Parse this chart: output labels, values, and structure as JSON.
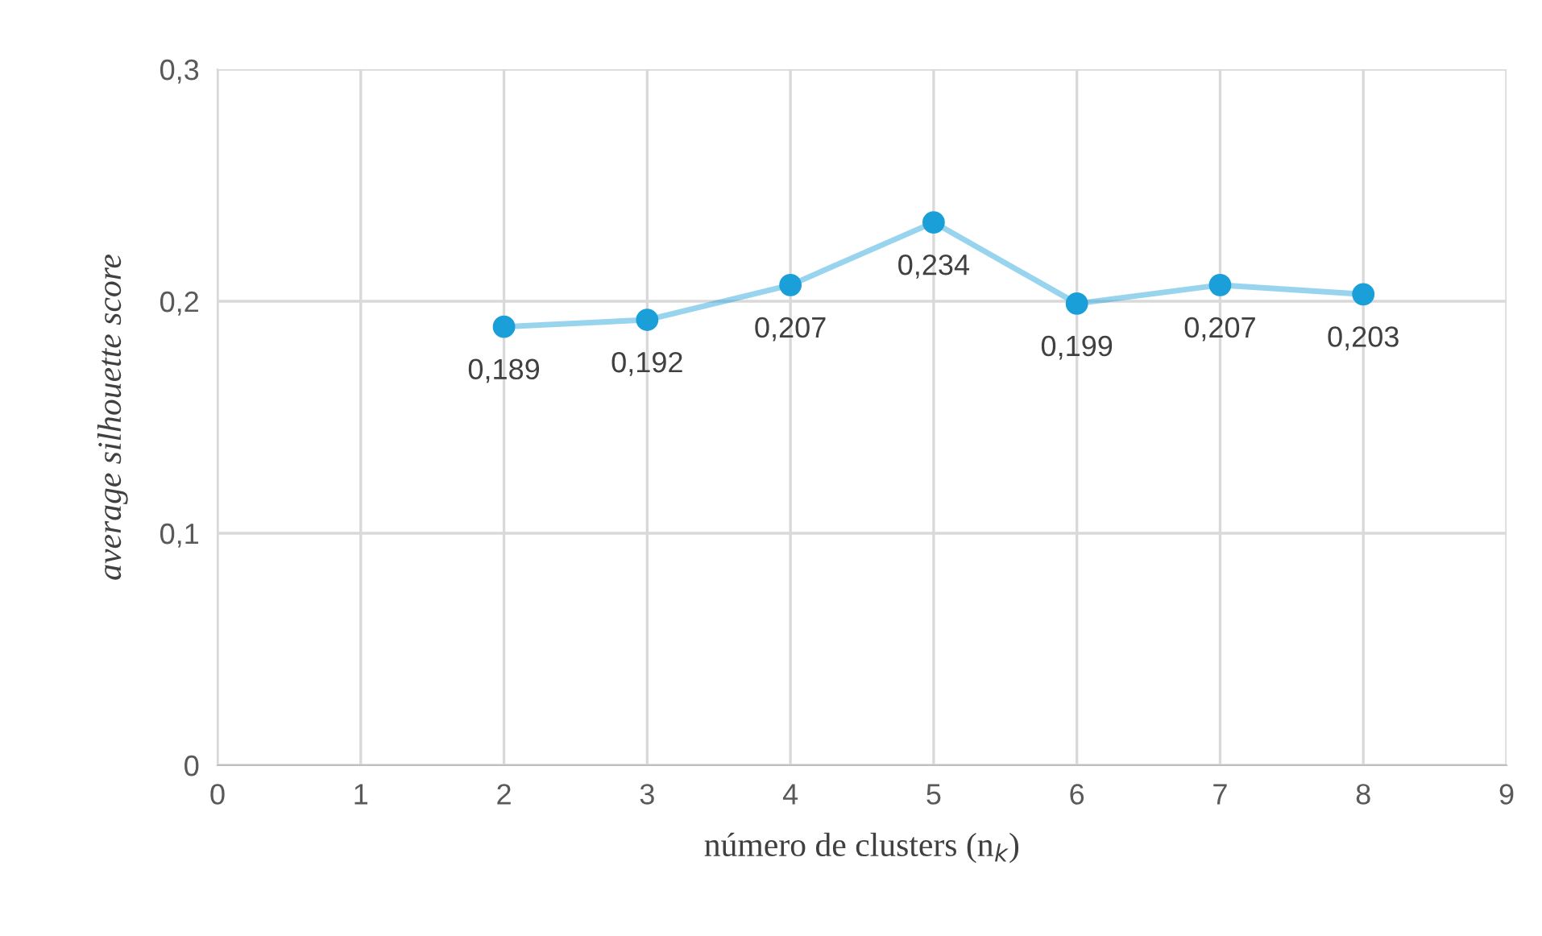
{
  "chart_data": {
    "type": "line",
    "xlabel": "número de clusters (n$_{k}$)",
    "ylabel": "average silhouette score",
    "x": [
      2,
      3,
      4,
      5,
      6,
      7,
      8
    ],
    "series": [
      {
        "color": "#1a9fd9",
        "values": [
          0.189,
          0.192,
          0.207,
          0.234,
          0.199,
          0.207,
          0.203
        ],
        "value_labels": [
          "0,189",
          "0,192",
          "0,207",
          "0,234",
          "0,199",
          "0,207",
          "0,203"
        ]
      }
    ],
    "xlim": [
      0,
      9
    ],
    "xticks": [
      0,
      1,
      2,
      3,
      4,
      5,
      6,
      7,
      8,
      9
    ],
    "ylim": [
      0,
      0.3
    ],
    "yticks": [
      0,
      {
        "value": 0.1,
        "label": "0,1"
      },
      {
        "value": 0.2,
        "label": "0,2"
      },
      {
        "value": 0.3,
        "label": "0,3"
      }
    ],
    "grid": true,
    "marker": "circle",
    "line_style": "solid"
  }
}
